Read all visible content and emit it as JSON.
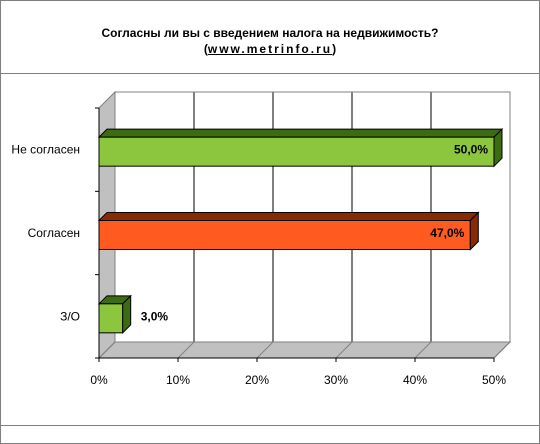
{
  "chart_data": {
    "type": "bar",
    "orientation": "horizontal",
    "title": "Согласны ли вы с введением налога на недвижимость?",
    "subtitle_prefix": "(",
    "subtitle_url": "www.metrinfo.ru",
    "subtitle_suffix": ")",
    "categories": [
      "Не согласен",
      "Согласен",
      "З/О"
    ],
    "values": [
      50.0,
      47.0,
      3.0
    ],
    "data_labels": [
      "50,0%",
      "47,0%",
      "3,0%"
    ],
    "bar_colors": [
      "#8cc63f",
      "#ff5a1f",
      "#8cc63f"
    ],
    "bar_side_colors": [
      "#3d6b12",
      "#8a2a05",
      "#3d6b12"
    ],
    "xlim": [
      0,
      50
    ],
    "x_ticks": [
      0,
      10,
      20,
      30,
      40,
      50
    ],
    "x_tick_labels": [
      "0%",
      "10%",
      "20%",
      "30%",
      "40%",
      "50%"
    ],
    "grid": true,
    "xlabel": "",
    "ylabel": ""
  }
}
